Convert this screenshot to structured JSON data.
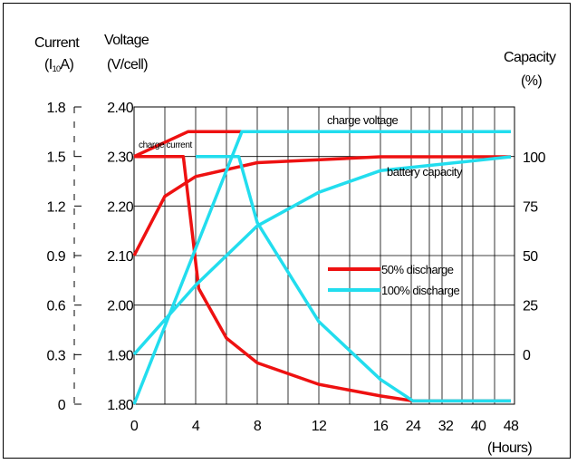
{
  "chart_data": {
    "type": "line",
    "axes": {
      "current": {
        "label_line1": "Current",
        "label_line2_prefix": "(I",
        "label_line2_sub": "10",
        "label_line2_suffix": "A)",
        "ticks": [
          "1.8",
          "1.5",
          "1.2",
          "0.9",
          "0.6",
          "0.3",
          "0"
        ]
      },
      "voltage": {
        "label_line1": "Voltage",
        "label_line2": "(V/cell)",
        "ticks": [
          "2.40",
          "2.30",
          "2.20",
          "2.10",
          "2.00",
          "1.90",
          "1.80"
        ],
        "range": [
          1.8,
          2.4
        ]
      },
      "capacity": {
        "label_line1": "Capacity",
        "label_line2": "(%)",
        "ticks": [
          "100",
          "75",
          "50",
          "25",
          "0"
        ]
      },
      "x": {
        "label": "(Hours)",
        "ticks": [
          "0",
          "4",
          "8",
          "12",
          "16",
          "24",
          "32",
          "40",
          "48"
        ]
      }
    },
    "annotations": {
      "charge_voltage": "charge voltage",
      "charge_current": "charge current",
      "battery_capacity": "battery capacity"
    },
    "series": [
      {
        "name": "50% discharge",
        "color": "#ee1111",
        "charge_voltage": [
          [
            0,
            2.3
          ],
          [
            3.5,
            2.35
          ],
          [
            16,
            2.35
          ]
        ],
        "charge_current": [
          [
            0,
            1.5
          ],
          [
            3.2,
            1.5
          ],
          [
            4.2,
            0.7
          ],
          [
            6,
            0.4
          ],
          [
            8,
            0.25
          ],
          [
            12,
            0.12
          ],
          [
            16,
            0.05
          ],
          [
            24,
            0.02
          ],
          [
            48,
            0.02
          ]
        ],
        "battery_capacity": [
          [
            0,
            50
          ],
          [
            2,
            80
          ],
          [
            4,
            90
          ],
          [
            8,
            97
          ],
          [
            16,
            100
          ],
          [
            48,
            100
          ]
        ]
      },
      {
        "name": "100% discharge",
        "color": "#22ddee",
        "charge_voltage": [
          [
            0,
            1.8
          ],
          [
            7,
            2.35
          ],
          [
            16,
            2.35
          ],
          [
            48,
            2.35
          ]
        ],
        "charge_current": [
          [
            4,
            1.5
          ],
          [
            6.8,
            1.5
          ],
          [
            8,
            1.1
          ],
          [
            12,
            0.5
          ],
          [
            16,
            0.15
          ],
          [
            24,
            0.02
          ],
          [
            48,
            0.02
          ]
        ],
        "battery_capacity": [
          [
            0,
            0
          ],
          [
            4,
            35
          ],
          [
            8,
            65
          ],
          [
            12,
            82
          ],
          [
            16,
            93
          ],
          [
            48,
            100
          ]
        ]
      }
    ],
    "grid": true,
    "legend": "center-right"
  }
}
